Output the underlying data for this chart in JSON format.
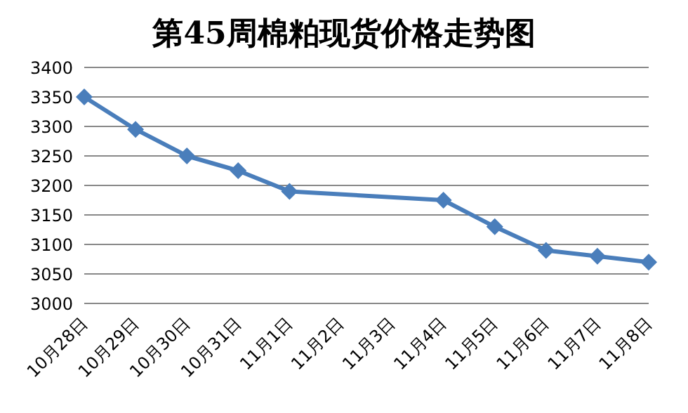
{
  "chart_data": {
    "type": "line",
    "title": "第45周棉粕现货价格走势图",
    "categories": [
      "10月28日",
      "10月29日",
      "10月30日",
      "10月31日",
      "11月1日",
      "11月2日",
      "11月3日",
      "11月4日",
      "11月5日",
      "11月6日",
      "11月7日",
      "11月8日"
    ],
    "series": [
      {
        "color": "#4a7ebb",
        "values": [
          3350,
          3295,
          3250,
          3225,
          3190,
          null,
          null,
          3175,
          3130,
          3090,
          3080,
          3070
        ]
      }
    ],
    "ylim": [
      3000,
      3400
    ],
    "yticks": [
      3000,
      3050,
      3100,
      3150,
      3200,
      3250,
      3300,
      3350,
      3400
    ],
    "grid": "y",
    "legend": false,
    "marker": "diamond",
    "line_style": "solid"
  }
}
